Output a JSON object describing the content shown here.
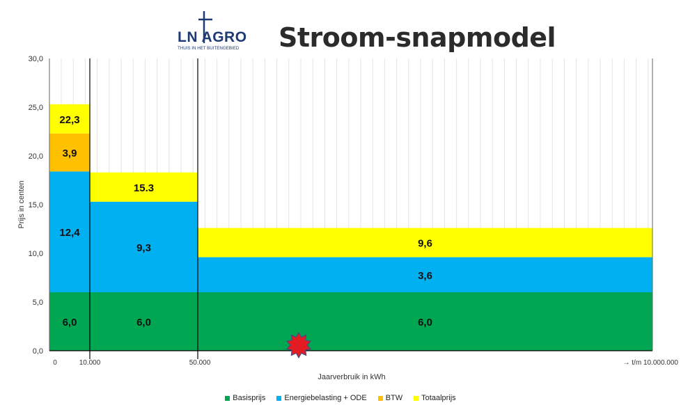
{
  "logo": {
    "text": "LN AGRO",
    "tagline": "THUIS IN HET BUITENGEBIED"
  },
  "title": "Stroom-snapmodel",
  "colors": {
    "basis": "#00a651",
    "energie": "#00b0f0",
    "btw": "#ffc000",
    "totaal": "#ffff00",
    "marker": "#e31b23"
  },
  "chart_data": {
    "type": "bar",
    "ylabel": "Prijs in centen",
    "xlabel": "Jaarverbruik in kWh",
    "ylim": [
      0,
      30
    ],
    "yticks": [
      "0,0",
      "5,0",
      "10,0",
      "15,0",
      "20,0",
      "25,0",
      "30,0"
    ],
    "xticks": [
      "0",
      "10.000",
      "50.000",
      "→ t/m 10.000.000"
    ],
    "grid": true,
    "legend_position": "bottom",
    "categories": [
      "0 - 10.000",
      "10.000 - 50.000",
      "50.000 - 10.000.000"
    ],
    "series": [
      {
        "name": "Basisprijs",
        "color_key": "basis",
        "values": [
          6.0,
          6.0,
          6.0
        ],
        "labels": [
          "6,0",
          "6,0",
          "6,0"
        ]
      },
      {
        "name": "Energiebelasting + ODE",
        "color_key": "energie",
        "values": [
          12.4,
          9.3,
          3.6
        ],
        "labels": [
          "12,4",
          "9,3",
          "3,6"
        ]
      },
      {
        "name": "BTW",
        "color_key": "btw",
        "values": [
          3.9,
          0,
          0
        ],
        "labels": [
          "3,9",
          "",
          ""
        ]
      },
      {
        "name": "Totaalprijs",
        "color_key": "totaal",
        "values": [
          3.0,
          3.0,
          3.0
        ],
        "labels": [
          "22,3",
          "15.3",
          "9,6"
        ]
      }
    ]
  },
  "legend": [
    {
      "label": "Basisprijs",
      "color_key": "basis"
    },
    {
      "label": "Energiebelasting + ODE",
      "color_key": "energie"
    },
    {
      "label": "BTW",
      "color_key": "btw"
    },
    {
      "label": "Totaalprijs",
      "color_key": "totaal"
    }
  ]
}
